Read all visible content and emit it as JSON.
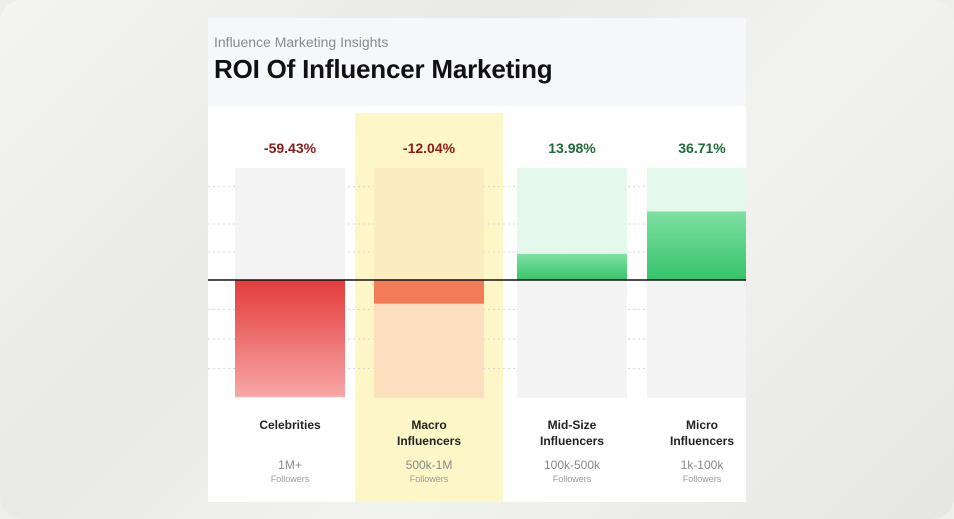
{
  "header": {
    "subtitle": "Influence Marketing Insights",
    "title": "ROI Of Influencer Marketing"
  },
  "colors": {
    "negative_strong": "#e23b3b",
    "negative_light": "#f8a7a7",
    "macro_bar": "#f47b57",
    "macro_highlight": "#fdf7c8",
    "positive_strong": "#35c46b",
    "positive_light": "#e2f7ea",
    "neg_text": "#8b1a1a",
    "pos_text": "#1e6b3a"
  },
  "chart_data": {
    "type": "bar",
    "title": "ROI Of Influencer Marketing",
    "subtitle": "Influence Marketing Insights",
    "categories": [
      "Celebrities",
      "Macro Influencers",
      "Mid-Size Influencers",
      "Micro Influencers"
    ],
    "category_lines": [
      [
        "Celebrities"
      ],
      [
        "Macro",
        "Influencers"
      ],
      [
        "Mid-Size",
        "Influencers"
      ],
      [
        "Micro",
        "Influencers"
      ]
    ],
    "follower_ranges": [
      "1M+",
      "500k-1M",
      "100k-500k",
      "1k-100k"
    ],
    "follower_unit": "Followers",
    "values": [
      -59.43,
      -12.04,
      13.98,
      36.71
    ],
    "value_labels": [
      "-59.43%",
      "-12.04%",
      "13.98%",
      "36.71%"
    ],
    "highlighted_category": "Macro Influencers",
    "ylim": [
      -60,
      60
    ],
    "baseline": 0,
    "grid": true
  }
}
